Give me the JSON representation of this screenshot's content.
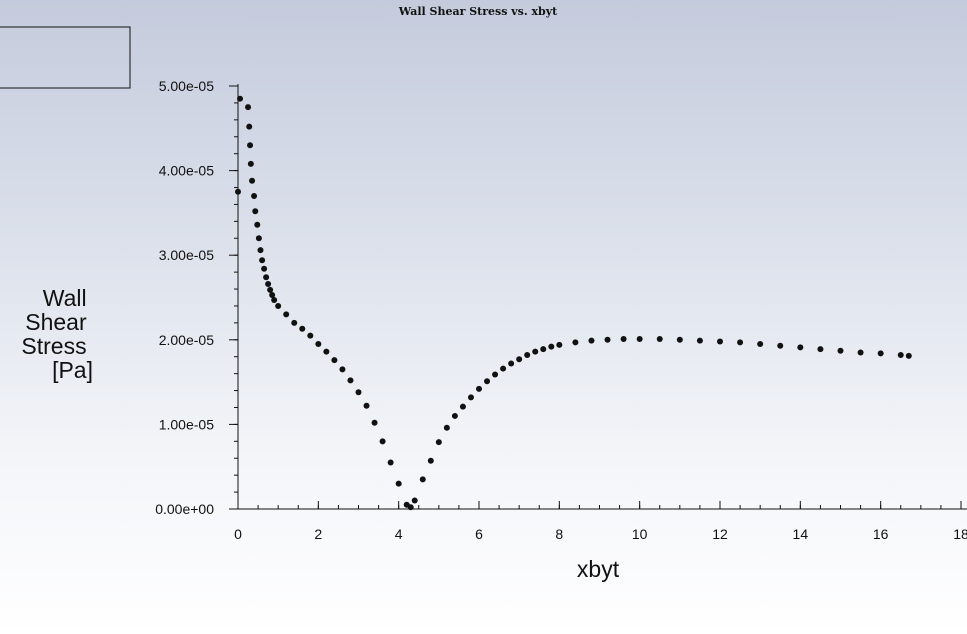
{
  "chart_data": {
    "type": "scatter",
    "title": "Wall Shear Stress vs. xbyt",
    "xlabel": "xbyt",
    "ylabel_lines": [
      "Wall",
      "Shear",
      "Stress",
      "[Pa]"
    ],
    "xlim": [
      0,
      18
    ],
    "ylim": [
      0,
      5e-05
    ],
    "x_ticks": [
      {
        "value": 0,
        "label": "0"
      },
      {
        "value": 2,
        "label": "2"
      },
      {
        "value": 4,
        "label": "4"
      },
      {
        "value": 6,
        "label": "6"
      },
      {
        "value": 8,
        "label": "8"
      },
      {
        "value": 10,
        "label": "10"
      },
      {
        "value": 12,
        "label": "12"
      },
      {
        "value": 14,
        "label": "14"
      },
      {
        "value": 16,
        "label": "16"
      },
      {
        "value": 18,
        "label": "18"
      }
    ],
    "y_ticks": [
      {
        "value": 0,
        "label": "0.00e+00"
      },
      {
        "value": 1e-05,
        "label": "1.00e-05"
      },
      {
        "value": 2e-05,
        "label": "2.00e-05"
      },
      {
        "value": 3e-05,
        "label": "3.00e-05"
      },
      {
        "value": 4e-05,
        "label": "4.00e-05"
      },
      {
        "value": 5e-05,
        "label": "5.00e-05"
      }
    ],
    "x_minor_step": 0.5,
    "y_minor_step": 2e-06,
    "marker_color": "#111111",
    "grid": false,
    "legend": "top-left box, no entries",
    "series": [
      {
        "points": [
          [
            0.0,
            3.75e-05
          ],
          [
            0.05,
            4.85e-05
          ],
          [
            0.25,
            4.75e-05
          ],
          [
            0.28,
            4.52e-05
          ],
          [
            0.3,
            4.3e-05
          ],
          [
            0.32,
            4.08e-05
          ],
          [
            0.35,
            3.88e-05
          ],
          [
            0.4,
            3.7e-05
          ],
          [
            0.43,
            3.52e-05
          ],
          [
            0.48,
            3.36e-05
          ],
          [
            0.52,
            3.2e-05
          ],
          [
            0.56,
            3.06e-05
          ],
          [
            0.6,
            2.94e-05
          ],
          [
            0.65,
            2.84e-05
          ],
          [
            0.7,
            2.74e-05
          ],
          [
            0.75,
            2.66e-05
          ],
          [
            0.8,
            2.59e-05
          ],
          [
            0.85,
            2.53e-05
          ],
          [
            0.9,
            2.47e-05
          ],
          [
            1.0,
            2.4e-05
          ],
          [
            1.2,
            2.3e-05
          ],
          [
            1.4,
            2.2e-05
          ],
          [
            1.6,
            2.13e-05
          ],
          [
            1.8,
            2.05e-05
          ],
          [
            2.0,
            1.95e-05
          ],
          [
            2.2,
            1.86e-05
          ],
          [
            2.4,
            1.76e-05
          ],
          [
            2.6,
            1.65e-05
          ],
          [
            2.8,
            1.52e-05
          ],
          [
            3.0,
            1.38e-05
          ],
          [
            3.2,
            1.22e-05
          ],
          [
            3.4,
            1.02e-05
          ],
          [
            3.6,
            8e-06
          ],
          [
            3.8,
            5.5e-06
          ],
          [
            4.0,
            3e-06
          ],
          [
            4.2,
            5e-07
          ],
          [
            4.3,
            2e-07
          ],
          [
            4.4,
            1e-06
          ],
          [
            4.6,
            3.5e-06
          ],
          [
            4.8,
            5.7e-06
          ],
          [
            5.0,
            7.9e-06
          ],
          [
            5.2,
            9.6e-06
          ],
          [
            5.4,
            1.1e-05
          ],
          [
            5.6,
            1.21e-05
          ],
          [
            5.8,
            1.32e-05
          ],
          [
            6.0,
            1.42e-05
          ],
          [
            6.2,
            1.51e-05
          ],
          [
            6.4,
            1.59e-05
          ],
          [
            6.6,
            1.66e-05
          ],
          [
            6.8,
            1.72e-05
          ],
          [
            7.0,
            1.77e-05
          ],
          [
            7.2,
            1.82e-05
          ],
          [
            7.4,
            1.86e-05
          ],
          [
            7.6,
            1.89e-05
          ],
          [
            7.8,
            1.92e-05
          ],
          [
            8.0,
            1.94e-05
          ],
          [
            8.4,
            1.97e-05
          ],
          [
            8.8,
            1.99e-05
          ],
          [
            9.2,
            2e-05
          ],
          [
            9.6,
            2.01e-05
          ],
          [
            10.0,
            2.01e-05
          ],
          [
            10.5,
            2.01e-05
          ],
          [
            11.0,
            2e-05
          ],
          [
            11.5,
            1.99e-05
          ],
          [
            12.0,
            1.98e-05
          ],
          [
            12.5,
            1.97e-05
          ],
          [
            13.0,
            1.95e-05
          ],
          [
            13.5,
            1.93e-05
          ],
          [
            14.0,
            1.91e-05
          ],
          [
            14.5,
            1.89e-05
          ],
          [
            15.0,
            1.87e-05
          ],
          [
            15.5,
            1.85e-05
          ],
          [
            16.0,
            1.84e-05
          ],
          [
            16.5,
            1.82e-05
          ],
          [
            16.7,
            1.81e-05
          ]
        ]
      }
    ]
  }
}
